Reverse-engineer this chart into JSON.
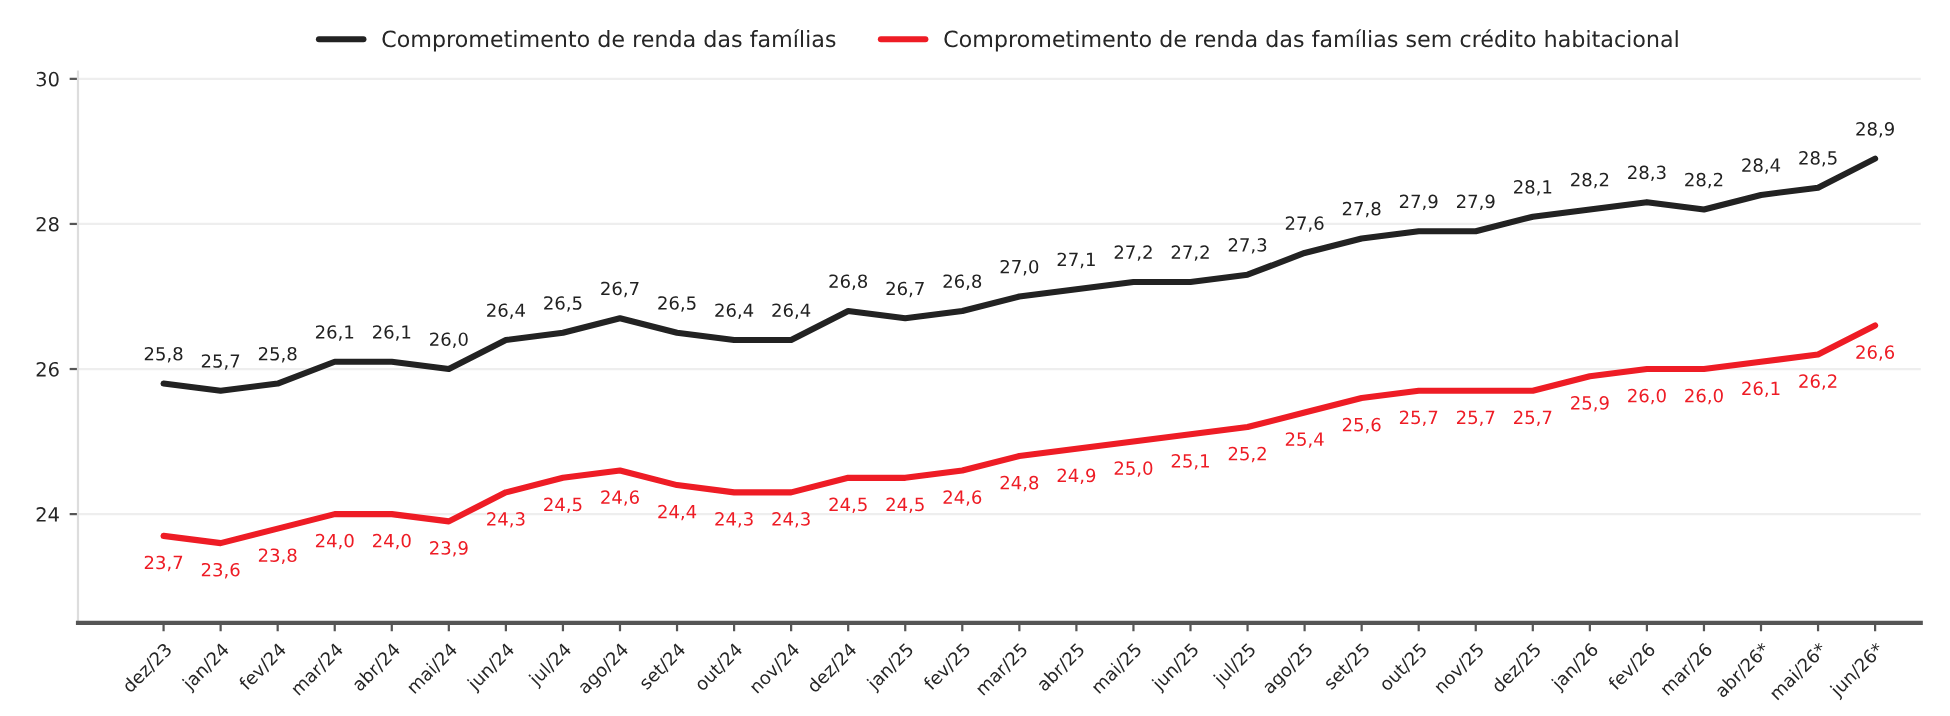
{
  "chart_data": {
    "type": "line",
    "categories": [
      "dez/23",
      "jan/24",
      "fev/24",
      "mar/24",
      "abr/24",
      "mai/24",
      "jun/24",
      "jul/24",
      "ago/24",
      "set/24",
      "out/24",
      "nov/24",
      "dez/24",
      "jan/25",
      "fev/25",
      "mar/25",
      "abr/25",
      "mai/25",
      "jun/25",
      "jul/25",
      "ago/25",
      "set/25",
      "out/25",
      "nov/25",
      "dez/25",
      "jan/26",
      "fev/26",
      "mar/26",
      "abr/26*",
      "mai/26*",
      "jun/26*"
    ],
    "series": [
      {
        "name": "Comprometimento de renda das famílias",
        "color": "#222222",
        "values": [
          25.8,
          25.7,
          25.8,
          26.1,
          26.1,
          26.0,
          26.4,
          26.5,
          26.7,
          26.5,
          26.4,
          26.4,
          26.8,
          26.7,
          26.8,
          27.0,
          27.1,
          27.2,
          27.2,
          27.3,
          27.6,
          27.8,
          27.9,
          27.9,
          28.1,
          28.2,
          28.3,
          28.2,
          28.4,
          28.5,
          28.9
        ],
        "value_labels": [
          "25,8",
          "25,7",
          "25,8",
          "26,1",
          "26,1",
          "26,0",
          "26,4",
          "26,5",
          "26,7",
          "26,5",
          "26,4",
          "26,4",
          "26,8",
          "26,7",
          "26,8",
          "27,0",
          "27,1",
          "27,2",
          "27,2",
          "27,3",
          "27,6",
          "27,8",
          "27,9",
          "27,9",
          "28,1",
          "28,2",
          "28,3",
          "28,2",
          "28,4",
          "28,5",
          "28,9"
        ]
      },
      {
        "name": "Comprometimento de renda das famílias sem crédito habitacional",
        "color": "#ee1c25",
        "values": [
          23.7,
          23.6,
          23.8,
          24.0,
          24.0,
          23.9,
          24.3,
          24.5,
          24.6,
          24.4,
          24.3,
          24.3,
          24.5,
          24.5,
          24.6,
          24.8,
          24.9,
          25.0,
          25.1,
          25.2,
          25.4,
          25.6,
          25.7,
          25.7,
          25.7,
          25.9,
          26.0,
          26.0,
          26.1,
          26.2,
          26.6
        ],
        "value_labels": [
          "23,7",
          "23,6",
          "23,8",
          "24,0",
          "24,0",
          "23,9",
          "24,3",
          "24,5",
          "24,6",
          "24,4",
          "24,3",
          "24,3",
          "24,5",
          "24,5",
          "24,6",
          "24,8",
          "24,9",
          "25,0",
          "25,1",
          "25,2",
          "25,4",
          "25,6",
          "25,7",
          "25,7",
          "25,7",
          "25,9",
          "26,0",
          "26,0",
          "26,1",
          "26,2",
          "26,6"
        ]
      }
    ],
    "ylim": [
      22.5,
      30.1
    ],
    "yticks": [
      24,
      26,
      28,
      30
    ],
    "grid": "y",
    "legend": "top",
    "marker": "none",
    "line_style": "solid"
  }
}
